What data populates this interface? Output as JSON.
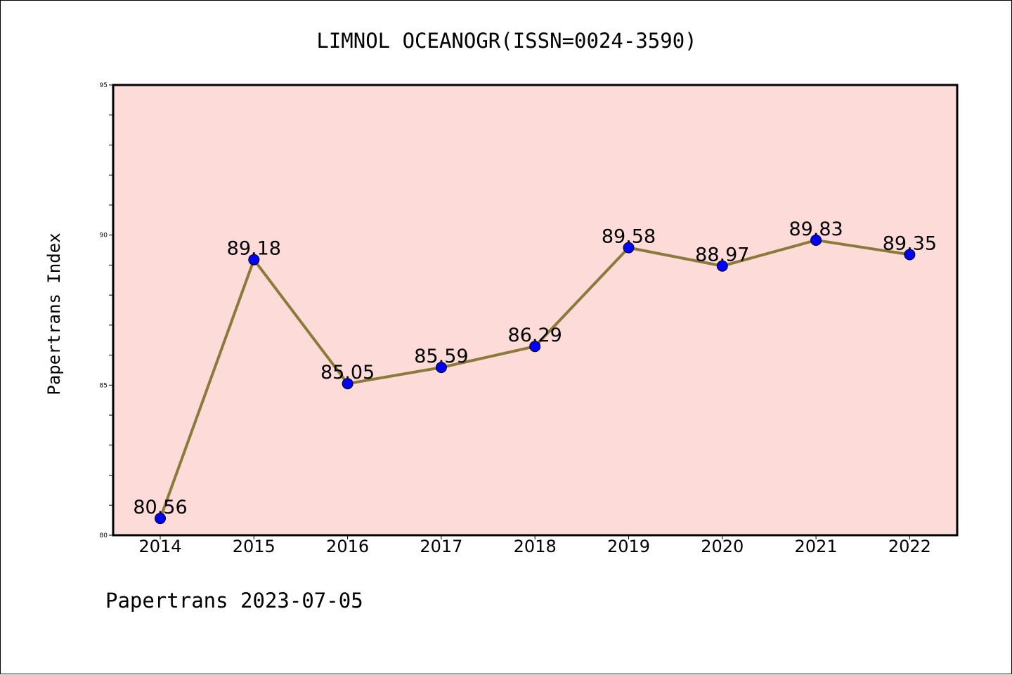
{
  "chart_data": {
    "type": "line",
    "title": "LIMNOL OCEANOGR(ISSN=0024-3590)",
    "xlabel": "",
    "ylabel": "Papertrans Index",
    "categories": [
      "2014",
      "2015",
      "2016",
      "2017",
      "2018",
      "2019",
      "2020",
      "2021",
      "2022"
    ],
    "series": [
      {
        "values": [
          80.56,
          89.18,
          85.05,
          85.59,
          86.29,
          89.58,
          88.97,
          89.83,
          89.35
        ],
        "labels": [
          "80.56",
          "89.18",
          "85.05",
          "85.59",
          "86.29",
          "89.58",
          "88.97",
          "89.83",
          "89.35"
        ]
      }
    ],
    "ylim": [
      80,
      95
    ],
    "yticks": [
      "80",
      "85",
      "90",
      "95"
    ],
    "grid": false,
    "colors": {
      "background": "#fddbd8",
      "line": "#8b7a3a",
      "marker": "#0000ff"
    }
  },
  "footer": {
    "text": "Papertrans 2023-07-05"
  }
}
